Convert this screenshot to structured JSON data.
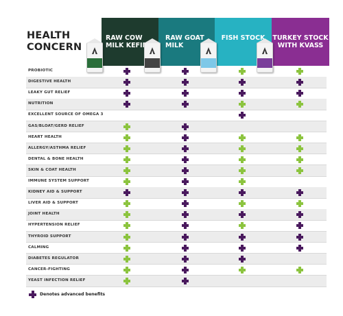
{
  "title": "HEALTH CONCERN",
  "columns": [
    {
      "label": "RAW COW MILK KEFIR",
      "color": "#1e3b2e",
      "band": "#2a6e3a"
    },
    {
      "label": "RAW GOAT MILK",
      "color": "#1a7a7f",
      "band": "#444444"
    },
    {
      "label": "FISH STOCK",
      "color": "#27b2c2",
      "band": "#7ec8e8"
    },
    {
      "label": "TURKEY STOCK WITH KVASS",
      "color": "#8a2e92",
      "band": "#7a3e9a"
    }
  ],
  "legend": {
    "label": "Denotes advanced benefits",
    "color": "#4a1a5e"
  },
  "marks": {
    "advanced": "#4a1a5e",
    "benefit": "#8cc43f"
  },
  "rows": [
    {
      "label": "PROBIOTIC",
      "cells": [
        "A",
        "A",
        "B",
        "B"
      ]
    },
    {
      "label": "DIGESTIVE HEALTH",
      "cells": [
        "A",
        "A",
        "A",
        "A"
      ]
    },
    {
      "label": "LEAKY GUT RELIEF",
      "cells": [
        "A",
        "A",
        "A",
        "A"
      ]
    },
    {
      "label": "NUTRITION",
      "cells": [
        "A",
        "A",
        "B",
        "B"
      ]
    },
    {
      "label": "EXCELLENT SOURCE OF OMEGA 3",
      "cells": [
        "",
        "",
        "A",
        ""
      ]
    },
    {
      "label": "GAS/BLOAT/GERD RELIEF",
      "cells": [
        "B",
        "A",
        "",
        ""
      ]
    },
    {
      "label": "HEART HEALTH",
      "cells": [
        "B",
        "A",
        "B",
        "B"
      ]
    },
    {
      "label": "ALLERGY/ASTHMA RELIEF",
      "cells": [
        "B",
        "A",
        "B",
        "B"
      ]
    },
    {
      "label": "DENTAL & BONE HEALTH",
      "cells": [
        "B",
        "A",
        "B",
        "B"
      ]
    },
    {
      "label": "SKIN & COAT HEALTH",
      "cells": [
        "B",
        "A",
        "B",
        "B"
      ]
    },
    {
      "label": "IMMUNE SYSTEM SUPPORT",
      "cells": [
        "B",
        "A",
        "B",
        ""
      ]
    },
    {
      "label": "KIDNEY AID & SUPPORT",
      "cells": [
        "A",
        "A",
        "A",
        "A"
      ]
    },
    {
      "label": "LIVER AID & SUPPORT",
      "cells": [
        "B",
        "A",
        "B",
        "B"
      ]
    },
    {
      "label": "JOINT HEALTH",
      "cells": [
        "B",
        "A",
        "A",
        "A"
      ]
    },
    {
      "label": "HYPERTENSION RELIEF",
      "cells": [
        "B",
        "A",
        "B",
        "A"
      ]
    },
    {
      "label": "THYROID  SUPPORT",
      "cells": [
        "B",
        "A",
        "A",
        "A"
      ]
    },
    {
      "label": "CALMING",
      "cells": [
        "B",
        "A",
        "A",
        "A"
      ]
    },
    {
      "label": "DIABETES REGULATOR",
      "cells": [
        "B",
        "A",
        "A",
        ""
      ]
    },
    {
      "label": "CANCER-FIGHTING",
      "cells": [
        "B",
        "A",
        "B",
        "B"
      ]
    },
    {
      "label": "YEAST INFECTION  RELIEF",
      "cells": [
        "B",
        "A",
        "",
        ""
      ]
    }
  ]
}
